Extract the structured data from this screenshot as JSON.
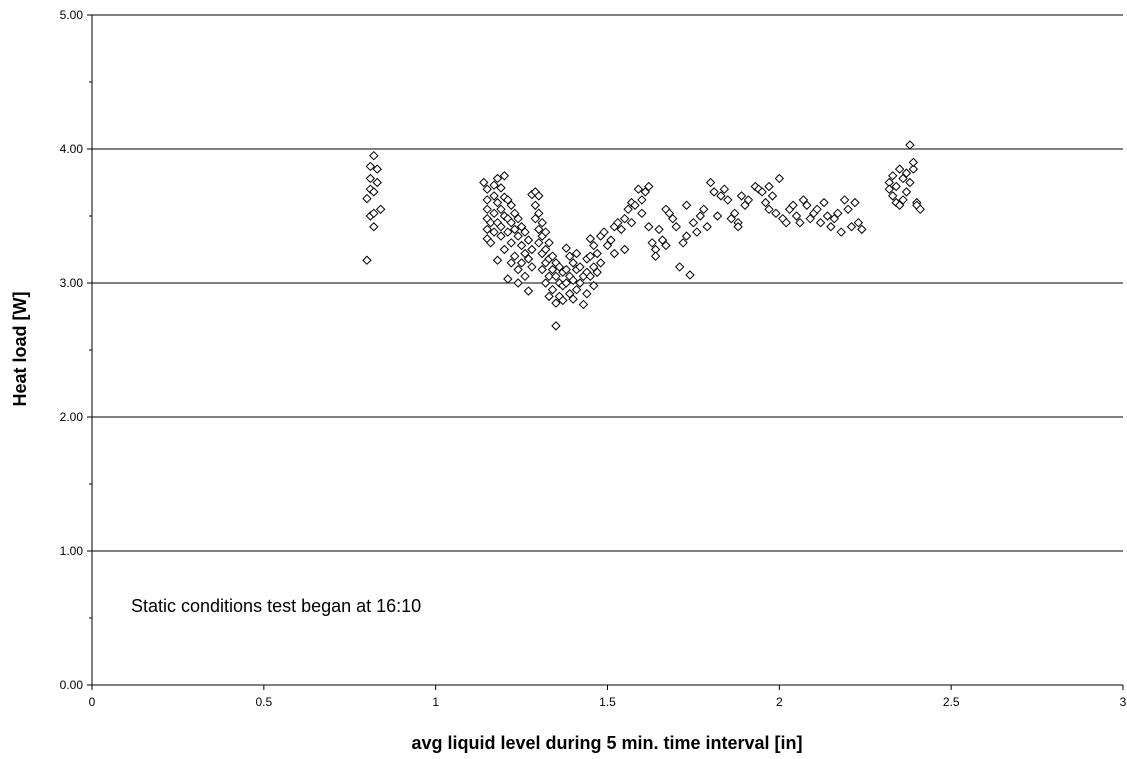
{
  "chart_data": {
    "type": "scatter",
    "xlabel": "avg liquid level during 5 min. time interval [in]",
    "ylabel": "Heat load [W]",
    "xlim": [
      0,
      3
    ],
    "ylim": [
      0,
      5
    ],
    "x_ticks": [
      "0",
      "0.5",
      "1",
      "1.5",
      "2",
      "2.5",
      "3"
    ],
    "x_tick_values": [
      0,
      0.5,
      1,
      1.5,
      2,
      2.5,
      3
    ],
    "y_ticks": [
      "0.00",
      "1.00",
      "2.00",
      "3.00",
      "4.00",
      "5.00"
    ],
    "y_tick_values": [
      0,
      1,
      2,
      3,
      4,
      5
    ],
    "grid": "horizontal major gridlines",
    "legend": "none",
    "marker": "open diamond",
    "marker_color": "#000000",
    "annotation": "Static conditions test began at 16:10",
    "series": [
      {
        "points": [
          [
            0.8,
            3.17
          ],
          [
            0.8,
            3.63
          ],
          [
            0.81,
            3.7
          ],
          [
            0.81,
            3.78
          ],
          [
            0.81,
            3.87
          ],
          [
            0.82,
            3.95
          ],
          [
            0.81,
            3.5
          ],
          [
            0.82,
            3.42
          ],
          [
            0.82,
            3.52
          ],
          [
            0.83,
            3.75
          ],
          [
            0.83,
            3.85
          ],
          [
            0.82,
            3.68
          ],
          [
            0.84,
            3.55
          ],
          [
            1.14,
            3.75
          ],
          [
            1.15,
            3.7
          ],
          [
            1.15,
            3.62
          ],
          [
            1.15,
            3.55
          ],
          [
            1.15,
            3.48
          ],
          [
            1.15,
            3.4
          ],
          [
            1.15,
            3.33
          ],
          [
            1.16,
            3.45
          ],
          [
            1.16,
            3.3
          ],
          [
            1.17,
            3.65
          ],
          [
            1.17,
            3.73
          ],
          [
            1.17,
            3.52
          ],
          [
            1.17,
            3.38
          ],
          [
            1.18,
            3.78
          ],
          [
            1.18,
            3.6
          ],
          [
            1.18,
            3.45
          ],
          [
            1.18,
            3.17
          ],
          [
            1.19,
            3.71
          ],
          [
            1.19,
            3.55
          ],
          [
            1.19,
            3.42
          ],
          [
            1.19,
            3.35
          ],
          [
            1.2,
            3.8
          ],
          [
            1.2,
            3.64
          ],
          [
            1.2,
            3.5
          ],
          [
            1.2,
            3.25
          ],
          [
            1.21,
            3.62
          ],
          [
            1.21,
            3.48
          ],
          [
            1.21,
            3.38
          ],
          [
            1.21,
            3.03
          ],
          [
            1.22,
            3.58
          ],
          [
            1.22,
            3.45
          ],
          [
            1.22,
            3.3
          ],
          [
            1.22,
            3.15
          ],
          [
            1.23,
            3.52
          ],
          [
            1.23,
            3.4
          ],
          [
            1.23,
            3.2
          ],
          [
            1.24,
            3.48
          ],
          [
            1.24,
            3.35
          ],
          [
            1.24,
            3.1
          ],
          [
            1.24,
            3.0
          ],
          [
            1.25,
            3.42
          ],
          [
            1.25,
            3.28
          ],
          [
            1.25,
            3.15
          ],
          [
            1.26,
            3.38
          ],
          [
            1.26,
            3.22
          ],
          [
            1.26,
            3.05
          ],
          [
            1.27,
            3.32
          ],
          [
            1.27,
            3.18
          ],
          [
            1.27,
            2.94
          ],
          [
            1.28,
            3.25
          ],
          [
            1.28,
            3.12
          ],
          [
            1.28,
            3.66
          ],
          [
            1.29,
            3.68
          ],
          [
            1.29,
            3.58
          ],
          [
            1.29,
            3.48
          ],
          [
            1.3,
            3.65
          ],
          [
            1.3,
            3.52
          ],
          [
            1.3,
            3.4
          ],
          [
            1.3,
            3.3
          ],
          [
            1.31,
            3.45
          ],
          [
            1.31,
            3.35
          ],
          [
            1.31,
            3.22
          ],
          [
            1.31,
            3.1
          ],
          [
            1.32,
            3.38
          ],
          [
            1.32,
            3.25
          ],
          [
            1.32,
            3.15
          ],
          [
            1.32,
            3.0
          ],
          [
            1.33,
            3.3
          ],
          [
            1.33,
            3.18
          ],
          [
            1.33,
            3.05
          ],
          [
            1.33,
            2.9
          ],
          [
            1.34,
            3.2
          ],
          [
            1.34,
            3.1
          ],
          [
            1.34,
            2.95
          ],
          [
            1.35,
            3.15
          ],
          [
            1.35,
            3.05
          ],
          [
            1.35,
            2.85
          ],
          [
            1.35,
            2.68
          ],
          [
            1.36,
            3.12
          ],
          [
            1.36,
            3.0
          ],
          [
            1.36,
            2.9
          ],
          [
            1.37,
            3.08
          ],
          [
            1.37,
            2.98
          ],
          [
            1.37,
            2.87
          ],
          [
            1.38,
            3.26
          ],
          [
            1.38,
            3.1
          ],
          [
            1.38,
            3.0
          ],
          [
            1.39,
            3.2
          ],
          [
            1.39,
            3.05
          ],
          [
            1.39,
            2.92
          ],
          [
            1.4,
            3.15
          ],
          [
            1.4,
            3.02
          ],
          [
            1.4,
            2.88
          ],
          [
            1.41,
            3.22
          ],
          [
            1.41,
            3.1
          ],
          [
            1.41,
            2.95
          ],
          [
            1.42,
            3.12
          ],
          [
            1.42,
            3.0
          ],
          [
            1.43,
            3.05
          ],
          [
            1.43,
            2.84
          ],
          [
            1.44,
            3.18
          ],
          [
            1.44,
            3.08
          ],
          [
            1.44,
            2.92
          ],
          [
            1.45,
            3.33
          ],
          [
            1.45,
            3.2
          ],
          [
            1.45,
            3.05
          ],
          [
            1.46,
            3.28
          ],
          [
            1.46,
            3.12
          ],
          [
            1.46,
            2.98
          ],
          [
            1.47,
            3.22
          ],
          [
            1.47,
            3.08
          ],
          [
            1.48,
            3.35
          ],
          [
            1.48,
            3.15
          ],
          [
            1.49,
            3.38
          ],
          [
            1.5,
            3.28
          ],
          [
            1.51,
            3.32
          ],
          [
            1.52,
            3.42
          ],
          [
            1.52,
            3.22
          ],
          [
            1.53,
            3.45
          ],
          [
            1.54,
            3.4
          ],
          [
            1.55,
            3.48
          ],
          [
            1.55,
            3.25
          ],
          [
            1.56,
            3.55
          ],
          [
            1.57,
            3.6
          ],
          [
            1.57,
            3.45
          ],
          [
            1.58,
            3.58
          ],
          [
            1.59,
            3.7
          ],
          [
            1.6,
            3.62
          ],
          [
            1.61,
            3.68
          ],
          [
            1.62,
            3.72
          ],
          [
            1.6,
            3.52
          ],
          [
            1.62,
            3.42
          ],
          [
            1.63,
            3.3
          ],
          [
            1.64,
            3.25
          ],
          [
            1.64,
            3.2
          ],
          [
            1.65,
            3.4
          ],
          [
            1.66,
            3.32
          ],
          [
            1.67,
            3.28
          ],
          [
            1.67,
            3.55
          ],
          [
            1.68,
            3.52
          ],
          [
            1.69,
            3.48
          ],
          [
            1.7,
            3.42
          ],
          [
            1.71,
            3.12
          ],
          [
            1.72,
            3.3
          ],
          [
            1.73,
            3.58
          ],
          [
            1.73,
            3.35
          ],
          [
            1.74,
            3.06
          ],
          [
            1.75,
            3.45
          ],
          [
            1.76,
            3.38
          ],
          [
            1.77,
            3.5
          ],
          [
            1.78,
            3.55
          ],
          [
            1.79,
            3.42
          ],
          [
            1.8,
            3.75
          ],
          [
            1.81,
            3.68
          ],
          [
            1.82,
            3.5
          ],
          [
            1.83,
            3.65
          ],
          [
            1.84,
            3.7
          ],
          [
            1.85,
            3.62
          ],
          [
            1.86,
            3.48
          ],
          [
            1.87,
            3.52
          ],
          [
            1.88,
            3.45
          ],
          [
            1.88,
            3.42
          ],
          [
            1.89,
            3.65
          ],
          [
            1.9,
            3.58
          ],
          [
            1.91,
            3.62
          ],
          [
            1.93,
            3.72
          ],
          [
            1.94,
            3.7
          ],
          [
            1.95,
            3.68
          ],
          [
            1.96,
            3.6
          ],
          [
            1.97,
            3.55
          ],
          [
            1.97,
            3.72
          ],
          [
            1.98,
            3.65
          ],
          [
            1.99,
            3.52
          ],
          [
            2.0,
            3.78
          ],
          [
            2.01,
            3.48
          ],
          [
            2.02,
            3.45
          ],
          [
            2.03,
            3.55
          ],
          [
            2.04,
            3.58
          ],
          [
            2.05,
            3.5
          ],
          [
            2.06,
            3.45
          ],
          [
            2.07,
            3.62
          ],
          [
            2.08,
            3.58
          ],
          [
            2.09,
            3.48
          ],
          [
            2.1,
            3.52
          ],
          [
            2.11,
            3.55
          ],
          [
            2.12,
            3.45
          ],
          [
            2.13,
            3.6
          ],
          [
            2.14,
            3.5
          ],
          [
            2.15,
            3.42
          ],
          [
            2.16,
            3.48
          ],
          [
            2.17,
            3.52
          ],
          [
            2.18,
            3.38
          ],
          [
            2.19,
            3.62
          ],
          [
            2.2,
            3.55
          ],
          [
            2.21,
            3.42
          ],
          [
            2.22,
            3.6
          ],
          [
            2.23,
            3.45
          ],
          [
            2.24,
            3.4
          ],
          [
            2.32,
            3.75
          ],
          [
            2.32,
            3.7
          ],
          [
            2.33,
            3.8
          ],
          [
            2.33,
            3.65
          ],
          [
            2.34,
            3.72
          ],
          [
            2.34,
            3.6
          ],
          [
            2.35,
            3.85
          ],
          [
            2.35,
            3.58
          ],
          [
            2.36,
            3.78
          ],
          [
            2.36,
            3.62
          ],
          [
            2.37,
            3.82
          ],
          [
            2.37,
            3.68
          ],
          [
            2.38,
            3.75
          ],
          [
            2.38,
            4.03
          ],
          [
            2.39,
            3.85
          ],
          [
            2.39,
            3.9
          ],
          [
            2.4,
            3.6
          ],
          [
            2.4,
            3.58
          ],
          [
            2.41,
            3.55
          ]
        ]
      }
    ]
  }
}
